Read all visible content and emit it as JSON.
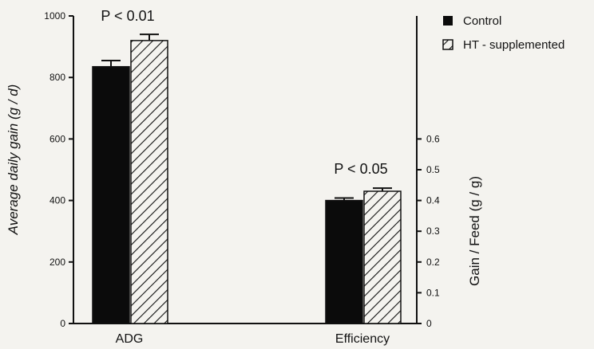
{
  "chart_data": {
    "type": "bar",
    "categories": [
      "ADG",
      "Efficiency"
    ],
    "series": [
      {
        "name": "Control",
        "values": [
          835,
          0.4
        ],
        "errors": [
          20,
          0.008
        ],
        "fill": "solid",
        "color": "#0b0b0b"
      },
      {
        "name": "HT - supplemented",
        "values": [
          920,
          0.43
        ],
        "errors": [
          20,
          0.01
        ],
        "fill": "hatched",
        "color": "#0b0b0b"
      }
    ],
    "axes": {
      "left": {
        "label": "Average daily gain (g / d)",
        "ylim": [
          0,
          1000
        ],
        "ticks": [
          0,
          200,
          400,
          600,
          800,
          1000
        ],
        "tick_labels": [
          "0",
          "200",
          "400",
          "600",
          "800",
          "1000"
        ],
        "applies_to": "ADG"
      },
      "right": {
        "label": "Gain / Feed (g / g)",
        "ylim": [
          0,
          1
        ],
        "ticks": [
          0,
          0.1,
          0.2,
          0.3,
          0.4,
          0.5,
          0.6
        ],
        "tick_labels": [
          "0",
          "0.1",
          "0.2",
          "0.3",
          "0.4",
          "0.5",
          "0.6"
        ],
        "applies_to": "Efficiency"
      }
    },
    "annotations": [
      {
        "category": "ADG",
        "text": "P < 0.01"
      },
      {
        "category": "Efficiency",
        "text": "P < 0.05"
      }
    ],
    "legend": {
      "position": "top-right",
      "entries": [
        "Control",
        "HT - supplemented"
      ]
    },
    "grid": false
  }
}
